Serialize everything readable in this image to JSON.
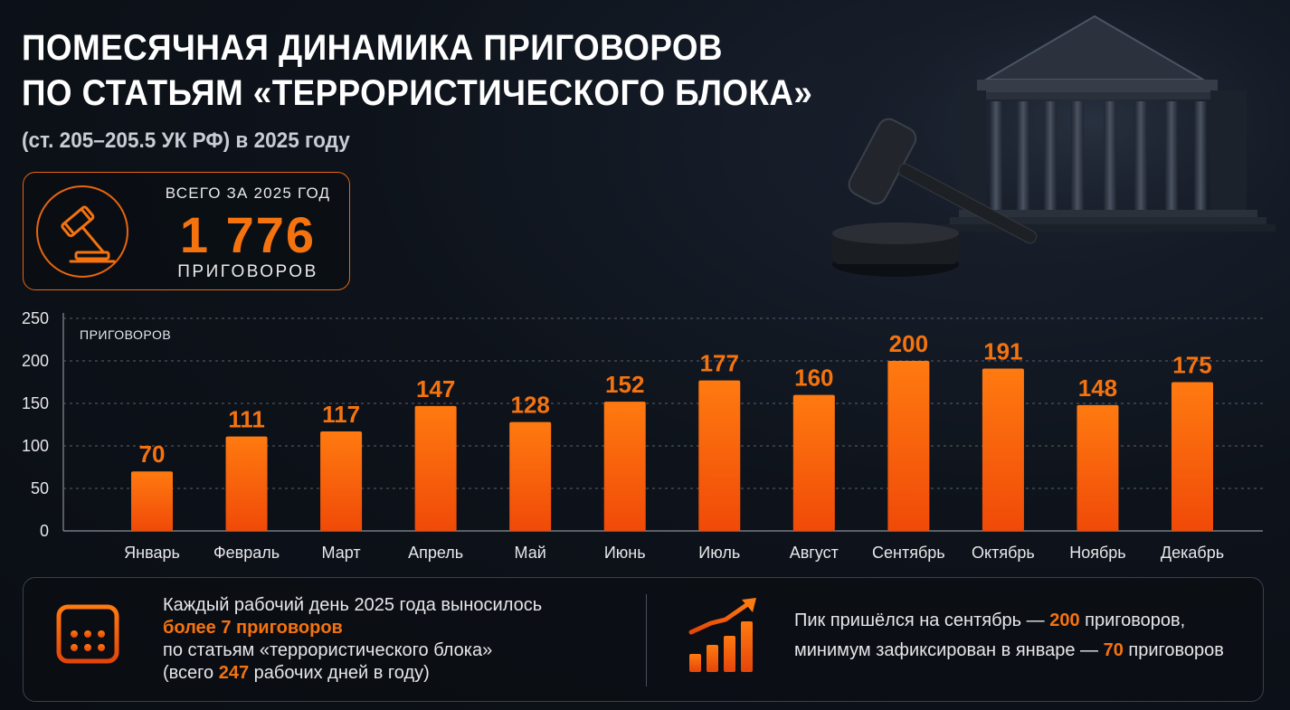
{
  "header": {
    "title_line1": "ПОМЕСЯЧНАЯ ДИНАМИКА ПРИГОВОРОВ",
    "title_line2": "ПО СТАТЬЯМ «ТЕРРОРИСТИЧЕСКОГО БЛОКА»",
    "subtitle": "(ст. 205–205.5 УК РФ) в 2025 году"
  },
  "total": {
    "caption": "ВСЕГО ЗА 2025 ГОД",
    "value": "1 776",
    "unit": "ПРИГОВОРОВ",
    "icon": "gavel-icon"
  },
  "decoration": {
    "icon": "courthouse-gavel-illustration"
  },
  "colors": {
    "accent": "#f5730f",
    "bar_top": "#ff7a10",
    "bar_bottom": "#f04a08",
    "background": "#0e131b"
  },
  "chart_data": {
    "type": "bar",
    "ylabel": "ПРИГОВОРОВ",
    "ylim": [
      0,
      250
    ],
    "yticks": [
      0,
      50,
      100,
      150,
      200,
      250
    ],
    "grid": true,
    "categories": [
      "Январь",
      "Февраль",
      "Март",
      "Апрель",
      "Май",
      "Июнь",
      "Июль",
      "Август",
      "Сентябрь",
      "Октябрь",
      "Ноябрь",
      "Декабрь"
    ],
    "values": [
      70,
      111,
      117,
      147,
      128,
      152,
      177,
      160,
      200,
      191,
      148,
      175
    ]
  },
  "bottom": {
    "left": {
      "icon": "calendar-icon",
      "line1": "Каждый рабочий день 2025 года выносилось",
      "line2": "более 7 приговоров",
      "line3": "по статьям «террористического блока»",
      "line4_pre": "(всего ",
      "line4_num": "247",
      "line4_post": " рабочих дней в году)"
    },
    "right": {
      "icon": "growth-chart-icon",
      "line1_pre": "Пик пришёлся на сентябрь — ",
      "line1_num": "200",
      "line1_post": " приговоров,",
      "line2_pre": "минимум зафиксирован в январе — ",
      "line2_num": "70",
      "line2_post": " приговоров"
    }
  }
}
